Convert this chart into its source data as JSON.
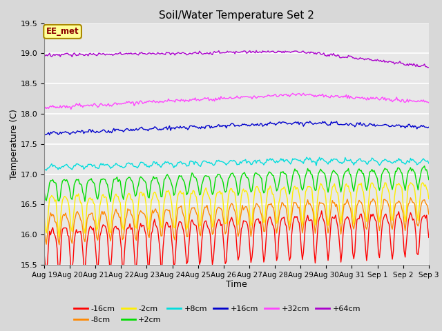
{
  "title": "Soil/Water Temperature Set 2",
  "xlabel": "Time",
  "ylabel": "Temperature (C)",
  "ylim": [
    15.5,
    19.5
  ],
  "x_tick_labels": [
    "Aug 19",
    "Aug 20",
    "Aug 21",
    "Aug 22",
    "Aug 23",
    "Aug 24",
    "Aug 25",
    "Aug 26",
    "Aug 27",
    "Aug 28",
    "Aug 29",
    "Aug 30",
    "Aug 31",
    "Sep 1",
    "Sep 2",
    "Sep 3"
  ],
  "series": [
    {
      "label": "-16cm",
      "color": "#ff0000",
      "base": 15.97,
      "trend1": 0.022,
      "trend2": 0.008,
      "amp": 0.28,
      "noise": 0.03,
      "spike_factor": 2.2
    },
    {
      "label": "-8cm",
      "color": "#ff8800",
      "base": 16.24,
      "trend1": 0.02,
      "trend2": 0.01,
      "amp": 0.22,
      "noise": 0.025,
      "spike_factor": 1.8
    },
    {
      "label": "-2cm",
      "color": "#ffee00",
      "base": 16.52,
      "trend1": 0.018,
      "trend2": 0.012,
      "amp": 0.26,
      "noise": 0.025,
      "spike_factor": 2.0
    },
    {
      "label": "+2cm",
      "color": "#00dd00",
      "base": 16.82,
      "trend1": 0.016,
      "trend2": 0.01,
      "amp": 0.18,
      "noise": 0.02,
      "spike_factor": 1.5
    },
    {
      "label": "+8cm",
      "color": "#00dddd",
      "base": 17.11,
      "trend1": 0.012,
      "trend2": -0.005,
      "amp": 0.08,
      "noise": 0.015,
      "spike_factor": 0.5
    },
    {
      "label": "+16cm",
      "color": "#0000cc",
      "base": 17.67,
      "trend1": 0.018,
      "trend2": -0.015,
      "amp": 0.04,
      "noise": 0.015,
      "spike_factor": 0.3
    },
    {
      "label": "+32cm",
      "color": "#ff44ff",
      "base": 18.1,
      "trend1": 0.022,
      "trend2": -0.025,
      "amp": 0.02,
      "noise": 0.015,
      "spike_factor": 0.2
    },
    {
      "label": "+64cm",
      "color": "#aa00cc",
      "base": 18.97,
      "trend1": 0.006,
      "trend2": -0.05,
      "amp": 0.01,
      "noise": 0.012,
      "spike_factor": 0.1
    }
  ],
  "annotation_text": "EE_met",
  "bg_color": "#e8e8e8",
  "grid_color": "#ffffff",
  "linewidth": 1.0
}
